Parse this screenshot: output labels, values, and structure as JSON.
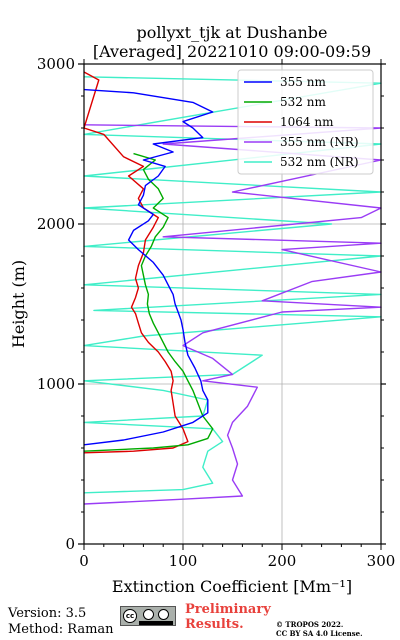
{
  "chart_data": {
    "type": "line",
    "title": "pollyxt_tjk at Dushanbe",
    "subtitle": "[Averaged] 20221010 09:00-09:59",
    "xlabel": "Extinction Coefficient [Mm⁻¹]",
    "ylabel": "Height (m)",
    "xlim": [
      0,
      300
    ],
    "ylim": [
      0,
      3000
    ],
    "xticks": [
      0,
      100,
      200,
      300
    ],
    "yticks": [
      0,
      1000,
      2000,
      3000
    ],
    "grid": true,
    "legend_position": "top-right",
    "series": [
      {
        "name": "355 nm",
        "color": "#0000ff",
        "points": [
          [
            0,
            620
          ],
          [
            40,
            650
          ],
          [
            80,
            700
          ],
          [
            110,
            760
          ],
          [
            125,
            820
          ],
          [
            125,
            900
          ],
          [
            120,
            960
          ],
          [
            118,
            1020
          ],
          [
            112,
            1100
          ],
          [
            105,
            1180
          ],
          [
            102,
            1260
          ],
          [
            100,
            1340
          ],
          [
            98,
            1400
          ],
          [
            95,
            1450
          ],
          [
            92,
            1500
          ],
          [
            90,
            1560
          ],
          [
            85,
            1620
          ],
          [
            80,
            1680
          ],
          [
            70,
            1760
          ],
          [
            55,
            1840
          ],
          [
            45,
            1900
          ],
          [
            50,
            1960
          ],
          [
            65,
            2020
          ],
          [
            70,
            2060
          ],
          [
            55,
            2120
          ],
          [
            60,
            2180
          ],
          [
            62,
            2240
          ],
          [
            75,
            2300
          ],
          [
            82,
            2360
          ],
          [
            60,
            2400
          ],
          [
            90,
            2450
          ],
          [
            70,
            2500
          ],
          [
            120,
            2540
          ],
          [
            110,
            2600
          ],
          [
            100,
            2640
          ],
          [
            130,
            2700
          ],
          [
            110,
            2760
          ],
          [
            50,
            2820
          ],
          [
            0,
            2840
          ]
        ]
      },
      {
        "name": "532 nm",
        "color": "#00aa00",
        "points": [
          [
            0,
            580
          ],
          [
            70,
            600
          ],
          [
            105,
            620
          ],
          [
            125,
            660
          ],
          [
            130,
            720
          ],
          [
            120,
            800
          ],
          [
            115,
            880
          ],
          [
            110,
            960
          ],
          [
            105,
            1020
          ],
          [
            100,
            1080
          ],
          [
            92,
            1140
          ],
          [
            85,
            1200
          ],
          [
            80,
            1260
          ],
          [
            75,
            1320
          ],
          [
            70,
            1380
          ],
          [
            66,
            1440
          ],
          [
            64,
            1500
          ],
          [
            65,
            1560
          ],
          [
            62,
            1620
          ],
          [
            60,
            1680
          ],
          [
            58,
            1740
          ],
          [
            62,
            1800
          ],
          [
            68,
            1860
          ],
          [
            72,
            1920
          ],
          [
            80,
            1980
          ],
          [
            85,
            2040
          ],
          [
            70,
            2100
          ],
          [
            80,
            2160
          ],
          [
            75,
            2220
          ],
          [
            65,
            2280
          ],
          [
            60,
            2340
          ],
          [
            72,
            2400
          ],
          [
            50,
            2440
          ]
        ]
      },
      {
        "name": "1064 nm",
        "color": "#dd0000",
        "points": [
          [
            0,
            570
          ],
          [
            50,
            580
          ],
          [
            90,
            600
          ],
          [
            105,
            640
          ],
          [
            100,
            720
          ],
          [
            92,
            800
          ],
          [
            90,
            880
          ],
          [
            88,
            960
          ],
          [
            90,
            1020
          ],
          [
            88,
            1080
          ],
          [
            82,
            1140
          ],
          [
            75,
            1200
          ],
          [
            65,
            1260
          ],
          [
            58,
            1320
          ],
          [
            55,
            1380
          ],
          [
            52,
            1440
          ],
          [
            48,
            1480
          ],
          [
            52,
            1540
          ],
          [
            55,
            1600
          ],
          [
            52,
            1660
          ],
          [
            55,
            1740
          ],
          [
            60,
            1820
          ],
          [
            62,
            1900
          ],
          [
            70,
            1980
          ],
          [
            75,
            2040
          ],
          [
            60,
            2100
          ],
          [
            55,
            2160
          ],
          [
            60,
            2220
          ],
          [
            45,
            2300
          ],
          [
            60,
            2360
          ],
          [
            40,
            2420
          ],
          [
            20,
            2560
          ],
          [
            0,
            2600
          ],
          [
            15,
            2900
          ],
          [
            0,
            2950
          ]
        ]
      },
      {
        "name": "355 nm (NR)",
        "color": "#9a3cf5",
        "points": [
          [
            0,
            250
          ],
          [
            100,
            280
          ],
          [
            160,
            300
          ],
          [
            150,
            400
          ],
          [
            155,
            500
          ],
          [
            150,
            600
          ],
          [
            145,
            680
          ],
          [
            150,
            760
          ],
          [
            165,
            860
          ],
          [
            175,
            980
          ],
          [
            120,
            1020
          ],
          [
            150,
            1060
          ],
          [
            130,
            1160
          ],
          [
            100,
            1240
          ],
          [
            120,
            1320
          ],
          [
            200,
            1450
          ],
          [
            300,
            1480
          ],
          [
            180,
            1520
          ],
          [
            230,
            1640
          ],
          [
            300,
            1700
          ],
          [
            200,
            1840
          ],
          [
            300,
            1880
          ],
          [
            80,
            1920
          ],
          [
            280,
            2040
          ],
          [
            300,
            2100
          ],
          [
            150,
            2200
          ],
          [
            300,
            2400
          ],
          [
            80,
            2500
          ],
          [
            300,
            2600
          ],
          [
            0,
            2620
          ]
        ]
      },
      {
        "name": "532 nm (NR)",
        "color": "#40eec8",
        "points": [
          [
            0,
            320
          ],
          [
            100,
            340
          ],
          [
            130,
            380
          ],
          [
            120,
            480
          ],
          [
            125,
            580
          ],
          [
            140,
            640
          ],
          [
            130,
            720
          ],
          [
            0,
            760
          ],
          [
            120,
            800
          ],
          [
            125,
            900
          ],
          [
            80,
            960
          ],
          [
            0,
            1020
          ],
          [
            150,
            1060
          ],
          [
            180,
            1180
          ],
          [
            0,
            1240
          ],
          [
            60,
            1300
          ],
          [
            300,
            1420
          ],
          [
            10,
            1460
          ],
          [
            300,
            1560
          ],
          [
            0,
            1620
          ],
          [
            300,
            1800
          ],
          [
            0,
            1860
          ],
          [
            250,
            2000
          ],
          [
            0,
            2100
          ],
          [
            300,
            2200
          ],
          [
            0,
            2300
          ],
          [
            300,
            2500
          ],
          [
            0,
            2560
          ],
          [
            300,
            2880
          ],
          [
            0,
            2920
          ]
        ]
      }
    ]
  },
  "footer": {
    "version": "Version: 3.5",
    "method": "Method: Raman",
    "preliminary_line1": "Preliminary",
    "preliminary_line2": "Results.",
    "copyright_line1": "© TROPOS 2022.",
    "copyright_line2": "CC BY SA 4.0 License."
  }
}
